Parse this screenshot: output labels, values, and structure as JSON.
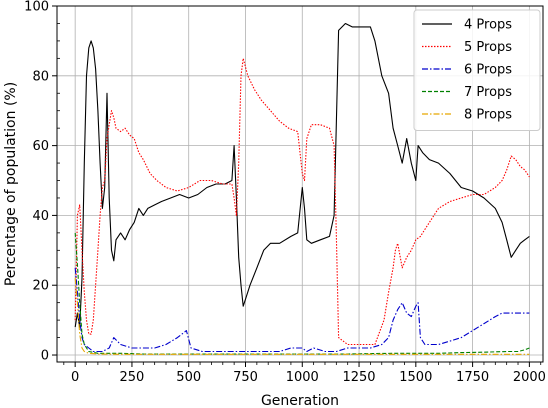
{
  "chart_data": {
    "type": "line",
    "title": "",
    "xlabel": "Generation",
    "ylabel": "Percentage of population (%)",
    "xlim": [
      -80,
      2060
    ],
    "ylim": [
      -2,
      100
    ],
    "xticks": [
      0,
      250,
      500,
      750,
      1000,
      1250,
      1500,
      1750,
      2000
    ],
    "yticks": [
      0,
      20,
      40,
      60,
      80,
      100
    ],
    "grid": true,
    "legend_position": "top-right",
    "series": [
      {
        "name": "4 Props",
        "color": "#000000",
        "dash": "solid",
        "points": [
          [
            0,
            8
          ],
          [
            10,
            12
          ],
          [
            20,
            8
          ],
          [
            30,
            22
          ],
          [
            40,
            55
          ],
          [
            50,
            80
          ],
          [
            60,
            88
          ],
          [
            70,
            90
          ],
          [
            80,
            88
          ],
          [
            90,
            82
          ],
          [
            100,
            70
          ],
          [
            110,
            55
          ],
          [
            120,
            42
          ],
          [
            130,
            48
          ],
          [
            140,
            75
          ],
          [
            150,
            45
          ],
          [
            160,
            30
          ],
          [
            170,
            27
          ],
          [
            180,
            33
          ],
          [
            200,
            35
          ],
          [
            220,
            33
          ],
          [
            240,
            36
          ],
          [
            260,
            38
          ],
          [
            280,
            42
          ],
          [
            300,
            40
          ],
          [
            320,
            42
          ],
          [
            350,
            43
          ],
          [
            380,
            44
          ],
          [
            420,
            45
          ],
          [
            460,
            46
          ],
          [
            500,
            45
          ],
          [
            540,
            46
          ],
          [
            580,
            48
          ],
          [
            620,
            49
          ],
          [
            660,
            49
          ],
          [
            690,
            50
          ],
          [
            700,
            60
          ],
          [
            710,
            45
          ],
          [
            720,
            28
          ],
          [
            730,
            20
          ],
          [
            740,
            14
          ],
          [
            750,
            16
          ],
          [
            770,
            20
          ],
          [
            800,
            25
          ],
          [
            830,
            30
          ],
          [
            860,
            32
          ],
          [
            900,
            32
          ],
          [
            950,
            34
          ],
          [
            980,
            35
          ],
          [
            1000,
            48
          ],
          [
            1010,
            42
          ],
          [
            1020,
            33
          ],
          [
            1040,
            32
          ],
          [
            1080,
            33
          ],
          [
            1120,
            34
          ],
          [
            1140,
            40
          ],
          [
            1160,
            93
          ],
          [
            1190,
            95
          ],
          [
            1220,
            94
          ],
          [
            1260,
            94
          ],
          [
            1300,
            94
          ],
          [
            1320,
            90
          ],
          [
            1350,
            80
          ],
          [
            1380,
            75
          ],
          [
            1400,
            65
          ],
          [
            1420,
            60
          ],
          [
            1440,
            55
          ],
          [
            1460,
            62
          ],
          [
            1480,
            55
          ],
          [
            1500,
            50
          ],
          [
            1510,
            60
          ],
          [
            1530,
            58
          ],
          [
            1560,
            56
          ],
          [
            1600,
            55
          ],
          [
            1650,
            52
          ],
          [
            1700,
            48
          ],
          [
            1750,
            47
          ],
          [
            1800,
            45
          ],
          [
            1850,
            42
          ],
          [
            1880,
            38
          ],
          [
            1900,
            33
          ],
          [
            1920,
            28
          ],
          [
            1940,
            30
          ],
          [
            1960,
            32
          ],
          [
            1980,
            33
          ],
          [
            2000,
            34
          ]
        ]
      },
      {
        "name": "5 Props",
        "color": "#ff0000",
        "dash": "dotted",
        "points": [
          [
            0,
            10
          ],
          [
            10,
            40
          ],
          [
            20,
            43
          ],
          [
            30,
            30
          ],
          [
            40,
            18
          ],
          [
            50,
            10
          ],
          [
            60,
            6
          ],
          [
            70,
            6
          ],
          [
            80,
            10
          ],
          [
            90,
            20
          ],
          [
            100,
            30
          ],
          [
            110,
            40
          ],
          [
            120,
            48
          ],
          [
            130,
            50
          ],
          [
            140,
            62
          ],
          [
            150,
            66
          ],
          [
            160,
            70
          ],
          [
            170,
            68
          ],
          [
            180,
            65
          ],
          [
            200,
            64
          ],
          [
            220,
            65
          ],
          [
            240,
            63
          ],
          [
            260,
            62
          ],
          [
            280,
            58
          ],
          [
            300,
            56
          ],
          [
            330,
            52
          ],
          [
            360,
            50
          ],
          [
            400,
            48
          ],
          [
            450,
            47
          ],
          [
            500,
            48
          ],
          [
            550,
            50
          ],
          [
            600,
            50
          ],
          [
            650,
            49
          ],
          [
            690,
            49
          ],
          [
            700,
            45
          ],
          [
            710,
            40
          ],
          [
            720,
            55
          ],
          [
            730,
            80
          ],
          [
            740,
            85
          ],
          [
            760,
            80
          ],
          [
            790,
            76
          ],
          [
            820,
            73
          ],
          [
            860,
            70
          ],
          [
            900,
            67
          ],
          [
            940,
            65
          ],
          [
            980,
            64
          ],
          [
            1000,
            52
          ],
          [
            1010,
            50
          ],
          [
            1020,
            62
          ],
          [
            1040,
            66
          ],
          [
            1080,
            66
          ],
          [
            1120,
            65
          ],
          [
            1140,
            60
          ],
          [
            1150,
            35
          ],
          [
            1160,
            5
          ],
          [
            1200,
            3
          ],
          [
            1260,
            3
          ],
          [
            1320,
            3
          ],
          [
            1360,
            10
          ],
          [
            1380,
            18
          ],
          [
            1400,
            25
          ],
          [
            1410,
            30
          ],
          [
            1420,
            32
          ],
          [
            1440,
            25
          ],
          [
            1460,
            28
          ],
          [
            1480,
            30
          ],
          [
            1500,
            33
          ],
          [
            1520,
            34
          ],
          [
            1560,
            38
          ],
          [
            1600,
            42
          ],
          [
            1650,
            44
          ],
          [
            1700,
            45
          ],
          [
            1750,
            46
          ],
          [
            1800,
            46
          ],
          [
            1850,
            48
          ],
          [
            1880,
            50
          ],
          [
            1900,
            53
          ],
          [
            1920,
            57
          ],
          [
            1940,
            56
          ],
          [
            1960,
            54
          ],
          [
            1980,
            53
          ],
          [
            2000,
            51
          ]
        ]
      },
      {
        "name": "6 Props",
        "color": "#0000cc",
        "dash": "dashdot",
        "points": [
          [
            0,
            25
          ],
          [
            10,
            18
          ],
          [
            20,
            10
          ],
          [
            30,
            5
          ],
          [
            40,
            3
          ],
          [
            60,
            2
          ],
          [
            80,
            1
          ],
          [
            100,
            1
          ],
          [
            120,
            1
          ],
          [
            150,
            2
          ],
          [
            170,
            5
          ],
          [
            200,
            3
          ],
          [
            250,
            2
          ],
          [
            300,
            2
          ],
          [
            350,
            2
          ],
          [
            400,
            3
          ],
          [
            450,
            5
          ],
          [
            490,
            7
          ],
          [
            510,
            2
          ],
          [
            560,
            1
          ],
          [
            600,
            1
          ],
          [
            650,
            1
          ],
          [
            700,
            1
          ],
          [
            750,
            1
          ],
          [
            800,
            1
          ],
          [
            850,
            1
          ],
          [
            900,
            1
          ],
          [
            950,
            2
          ],
          [
            1000,
            2
          ],
          [
            1020,
            1
          ],
          [
            1050,
            2
          ],
          [
            1100,
            1
          ],
          [
            1150,
            1
          ],
          [
            1200,
            2
          ],
          [
            1250,
            2
          ],
          [
            1300,
            2
          ],
          [
            1350,
            3
          ],
          [
            1380,
            5
          ],
          [
            1400,
            10
          ],
          [
            1420,
            13
          ],
          [
            1440,
            15
          ],
          [
            1460,
            12
          ],
          [
            1480,
            11
          ],
          [
            1500,
            14
          ],
          [
            1510,
            15
          ],
          [
            1520,
            5
          ],
          [
            1540,
            3
          ],
          [
            1600,
            3
          ],
          [
            1650,
            4
          ],
          [
            1700,
            5
          ],
          [
            1750,
            7
          ],
          [
            1800,
            9
          ],
          [
            1850,
            11
          ],
          [
            1880,
            12
          ],
          [
            1900,
            12
          ],
          [
            1920,
            12
          ],
          [
            1950,
            12
          ],
          [
            2000,
            12
          ]
        ]
      },
      {
        "name": "7 Props",
        "color": "#008000",
        "dash": "dashed",
        "points": [
          [
            0,
            35
          ],
          [
            10,
            26
          ],
          [
            20,
            15
          ],
          [
            30,
            6
          ],
          [
            40,
            3
          ],
          [
            60,
            1
          ],
          [
            100,
            0.5
          ],
          [
            150,
            0.5
          ],
          [
            200,
            0.5
          ],
          [
            300,
            0.3
          ],
          [
            400,
            0.3
          ],
          [
            500,
            0.3
          ],
          [
            600,
            0.3
          ],
          [
            700,
            0.3
          ],
          [
            800,
            0.3
          ],
          [
            900,
            0.3
          ],
          [
            1000,
            0.3
          ],
          [
            1100,
            0.3
          ],
          [
            1200,
            0.3
          ],
          [
            1300,
            0.4
          ],
          [
            1400,
            0.5
          ],
          [
            1500,
            0.5
          ],
          [
            1600,
            0.5
          ],
          [
            1700,
            0.7
          ],
          [
            1800,
            0.8
          ],
          [
            1900,
            1
          ],
          [
            1950,
            1
          ],
          [
            1980,
            1.5
          ],
          [
            2000,
            2
          ]
        ]
      },
      {
        "name": "8 Props",
        "color": "#e6a800",
        "dash": "dashdot",
        "points": [
          [
            0,
            22
          ],
          [
            10,
            15
          ],
          [
            20,
            6
          ],
          [
            30,
            2
          ],
          [
            40,
            1
          ],
          [
            60,
            0.5
          ],
          [
            100,
            0.3
          ],
          [
            200,
            0.2
          ],
          [
            400,
            0.2
          ],
          [
            600,
            0.2
          ],
          [
            800,
            0.2
          ],
          [
            1000,
            0.2
          ],
          [
            1200,
            0.2
          ],
          [
            1400,
            0.2
          ],
          [
            1600,
            0.2
          ],
          [
            1800,
            0.2
          ],
          [
            2000,
            0.2
          ]
        ]
      }
    ]
  }
}
